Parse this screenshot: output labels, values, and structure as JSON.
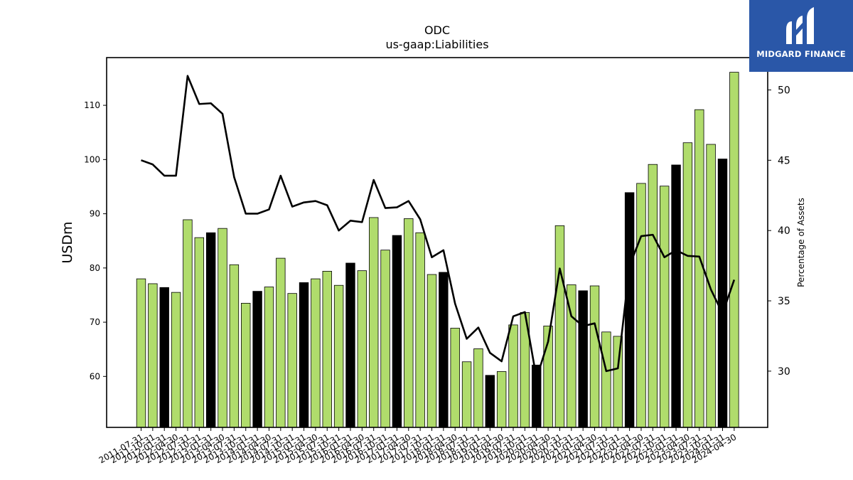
{
  "brand": {
    "name": "MIDGARD FINANCE",
    "bg_color": "#2a57a8",
    "icon": "midgard-logo-icon"
  },
  "colors": {
    "bar_green": "#b0dc6c",
    "bar_black": "#000000",
    "line": "#000000"
  },
  "chart_data": {
    "type": "bar",
    "title": "ODC",
    "subtitle": "us-gaap:Liabilities",
    "ylabel": "USDm",
    "y2label": "Percentage of Assets",
    "ylim": [
      50.6,
      118.8
    ],
    "y2lim": [
      26.0,
      52.3
    ],
    "yticks": [
      60,
      70,
      80,
      90,
      100,
      110
    ],
    "y2ticks": [
      30,
      35,
      40,
      45,
      50
    ],
    "categories": [
      "2011-07-31",
      "2011-10-31",
      "2012-01-31",
      "2012-04-30",
      "2012-07-31",
      "2012-10-31",
      "2013-01-31",
      "2013-04-30",
      "2013-07-31",
      "2013-10-31",
      "2014-01-31",
      "2014-04-30",
      "2014-07-31",
      "2014-10-31",
      "2015-01-31",
      "2015-04-30",
      "2015-07-31",
      "2015-10-31",
      "2016-01-31",
      "2016-04-30",
      "2016-07-31",
      "2016-10-31",
      "2017-01-31",
      "2017-04-30",
      "2017-07-31",
      "2017-10-31",
      "2018-01-31",
      "2018-04-30",
      "2018-07-31",
      "2018-10-31",
      "2019-01-31",
      "2019-04-30",
      "2019-07-31",
      "2019-10-31",
      "2020-01-31",
      "2020-04-30",
      "2020-07-31",
      "2020-10-31",
      "2021-01-31",
      "2021-04-30",
      "2021-07-31",
      "2021-10-31",
      "2022-01-31",
      "2022-04-30",
      "2022-07-31",
      "2022-10-31",
      "2023-01-31",
      "2023-04-30",
      "2023-07-31",
      "2023-10-31",
      "2024-01-31",
      "2024-04-30"
    ],
    "series": [
      {
        "kind": "bar",
        "values": [
          78.0,
          77.1,
          76.4,
          75.5,
          88.9,
          85.6,
          86.5,
          87.3,
          80.6,
          73.5,
          75.7,
          76.5,
          81.8,
          75.3,
          77.3,
          78.0,
          79.4,
          76.8,
          80.9,
          79.5,
          89.3,
          83.3,
          86.0,
          89.1,
          86.5,
          78.8,
          79.2,
          68.9,
          62.7,
          65.1,
          60.2,
          60.9,
          69.5,
          71.8,
          62.1,
          69.3,
          87.8,
          76.9,
          75.8,
          76.7,
          68.2,
          67.4,
          93.9,
          95.6,
          99.1,
          95.1,
          99.0,
          103.1,
          109.2,
          102.8,
          100.1,
          116.1
        ],
        "highlight": [
          false,
          false,
          true,
          false,
          false,
          false,
          true,
          false,
          false,
          false,
          true,
          false,
          false,
          false,
          true,
          false,
          false,
          false,
          true,
          false,
          false,
          false,
          true,
          false,
          false,
          false,
          true,
          false,
          false,
          false,
          true,
          false,
          false,
          false,
          true,
          false,
          false,
          false,
          true,
          false,
          false,
          false,
          true,
          false,
          false,
          false,
          true,
          false,
          false,
          false,
          true,
          false
        ]
      },
      {
        "kind": "line",
        "axis": "right",
        "values": [
          45.0,
          44.7,
          43.9,
          43.9,
          51.0,
          49.0,
          49.05,
          48.3,
          43.8,
          41.2,
          41.2,
          41.5,
          43.9,
          41.7,
          42.0,
          42.1,
          41.8,
          40.0,
          40.7,
          40.6,
          43.6,
          41.6,
          41.65,
          42.1,
          40.8,
          38.1,
          38.6,
          34.8,
          32.3,
          33.1,
          31.3,
          30.7,
          33.9,
          34.2,
          29.5,
          32.1,
          37.3,
          33.9,
          33.2,
          33.4,
          30.0,
          30.2,
          37.5,
          39.6,
          39.7,
          38.1,
          38.6,
          38.2,
          38.15,
          35.8,
          34.1,
          36.5
        ]
      }
    ],
    "grid": false,
    "legend": "none"
  }
}
